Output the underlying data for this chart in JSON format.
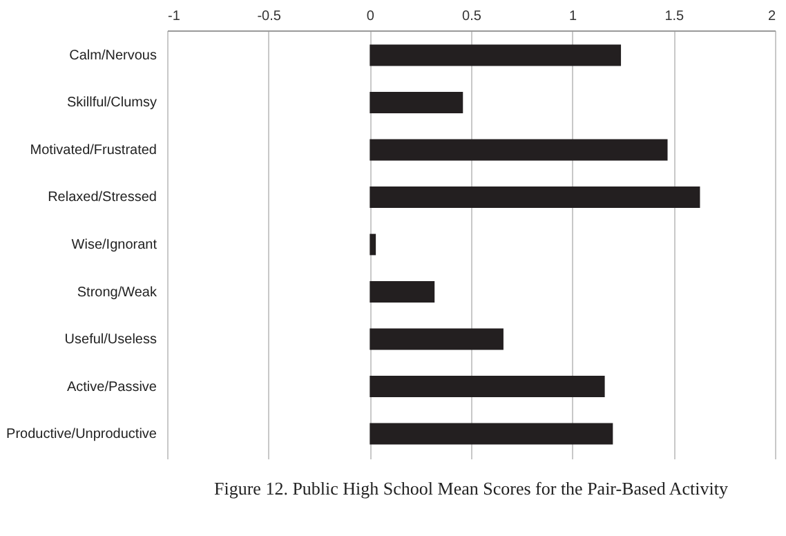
{
  "chart_data": {
    "type": "bar",
    "orientation": "horizontal",
    "title": "Figure 12. Public High School Mean Scores for the Pair-Based Activity",
    "categories": [
      "Calm/Nervous",
      "Skillful/Clumsy",
      "Motivated/Frustrated",
      "Relaxed/Stressed",
      "Wise/Ignorant",
      "Strong/Weak",
      "Useful/Useless",
      "Active/Passive",
      "Productive/Unproductive"
    ],
    "values": [
      1.24,
      0.46,
      1.47,
      1.63,
      0.03,
      0.32,
      0.66,
      1.16,
      1.2
    ],
    "color": "#231f20",
    "xlim": [
      -1,
      2
    ],
    "xticks": [
      -1,
      -0.5,
      0,
      0.5,
      1,
      1.5,
      2
    ],
    "grid": "x"
  }
}
